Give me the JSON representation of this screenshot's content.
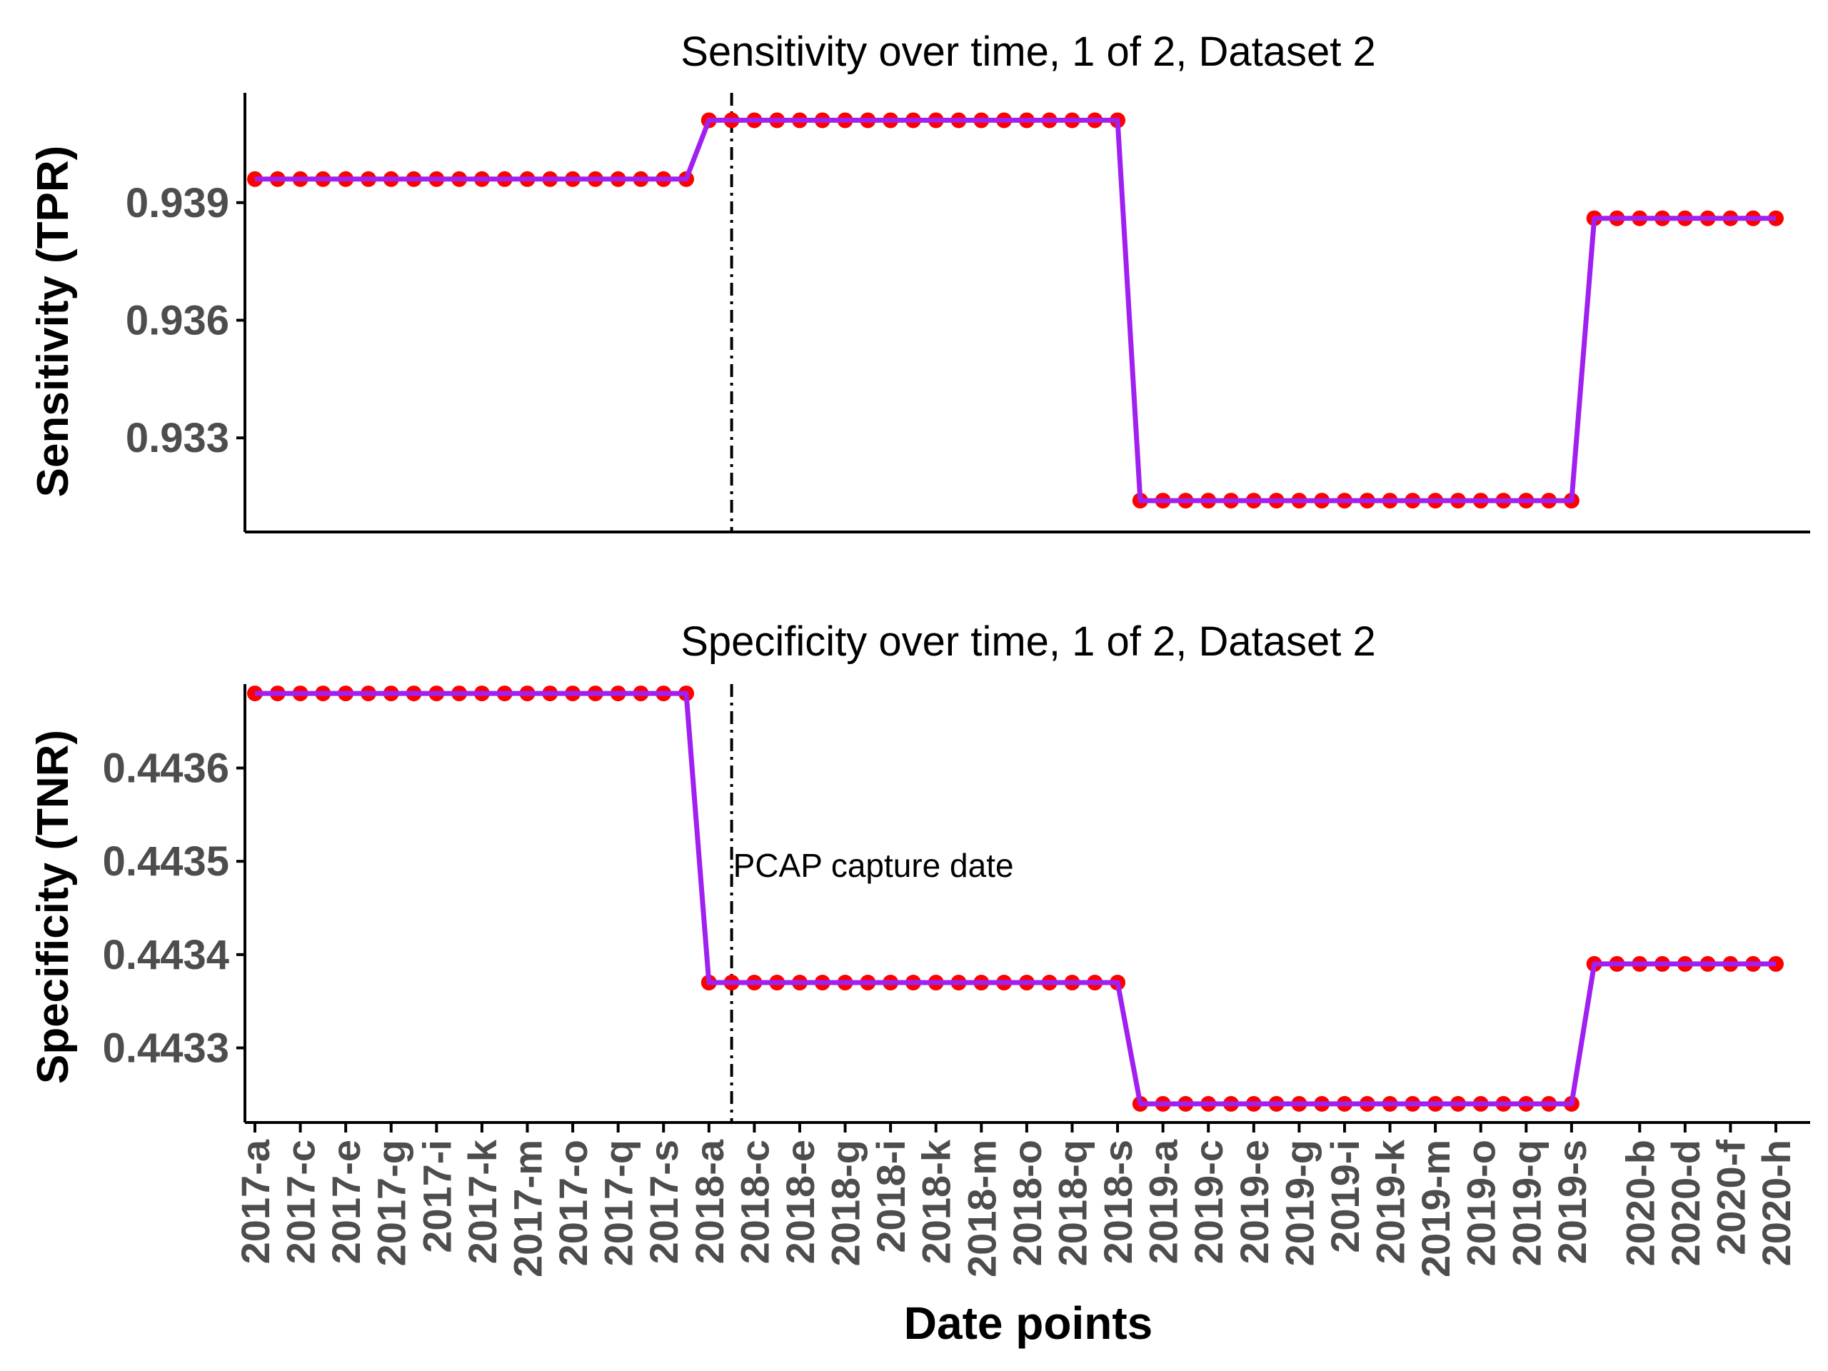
{
  "chart_data": [
    {
      "type": "line",
      "title": "Sensitivity over time, 1 of 2, Dataset 2",
      "ylabel": "Sensitivity (TPR)",
      "xlabel": "",
      "y_ticks": [
        0.933,
        0.936,
        0.939
      ],
      "y_tick_labels": [
        "0.933",
        "0.936",
        "0.939"
      ],
      "ylim": [
        0.9306,
        0.9418
      ],
      "show_x_tick_labels": false,
      "vline_x": "2018-b",
      "annotation": "",
      "series": [
        {
          "values": [
            0.9396,
            0.9396,
            0.9396,
            0.9396,
            0.9396,
            0.9396,
            0.9396,
            0.9396,
            0.9396,
            0.9396,
            0.9396,
            0.9396,
            0.9396,
            0.9396,
            0.9396,
            0.9396,
            0.9396,
            0.9396,
            0.9396,
            0.9396,
            0.9411,
            0.9411,
            0.9411,
            0.9411,
            0.9411,
            0.9411,
            0.9411,
            0.9411,
            0.9411,
            0.9411,
            0.9411,
            0.9411,
            0.9411,
            0.9411,
            0.9411,
            0.9411,
            0.9411,
            0.9411,
            0.9411,
            0.9314,
            0.9314,
            0.9314,
            0.9314,
            0.9314,
            0.9314,
            0.9314,
            0.9314,
            0.9314,
            0.9314,
            0.9314,
            0.9314,
            0.9314,
            0.9314,
            0.9314,
            0.9314,
            0.9314,
            0.9314,
            0.9314,
            0.9314,
            0.9386,
            0.9386,
            0.9386,
            0.9386,
            0.9386,
            0.9386,
            0.9386,
            0.9386,
            0.9386
          ]
        }
      ]
    },
    {
      "type": "line",
      "title": "Specificity over time, 1 of 2, Dataset 2",
      "ylabel": "Specificity (TNR)",
      "xlabel": "Date points",
      "y_ticks": [
        0.4433,
        0.4434,
        0.4435,
        0.4436
      ],
      "y_tick_labels": [
        "0.4433",
        "0.4434",
        "0.4435",
        "0.4436"
      ],
      "ylim": [
        0.44322,
        0.44369
      ],
      "show_x_tick_labels": true,
      "vline_x": "2018-b",
      "annotation": "PCAP capture date",
      "series": [
        {
          "values": [
            0.44368,
            0.44368,
            0.44368,
            0.44368,
            0.44368,
            0.44368,
            0.44368,
            0.44368,
            0.44368,
            0.44368,
            0.44368,
            0.44368,
            0.44368,
            0.44368,
            0.44368,
            0.44368,
            0.44368,
            0.44368,
            0.44368,
            0.44368,
            0.44337,
            0.44337,
            0.44337,
            0.44337,
            0.44337,
            0.44337,
            0.44337,
            0.44337,
            0.44337,
            0.44337,
            0.44337,
            0.44337,
            0.44337,
            0.44337,
            0.44337,
            0.44337,
            0.44337,
            0.44337,
            0.44337,
            0.44324,
            0.44324,
            0.44324,
            0.44324,
            0.44324,
            0.44324,
            0.44324,
            0.44324,
            0.44324,
            0.44324,
            0.44324,
            0.44324,
            0.44324,
            0.44324,
            0.44324,
            0.44324,
            0.44324,
            0.44324,
            0.44324,
            0.44324,
            0.44339,
            0.44339,
            0.44339,
            0.44339,
            0.44339,
            0.44339,
            0.44339,
            0.44339,
            0.44339
          ]
        }
      ]
    }
  ],
  "x": [
    "2017-a",
    "2017-b",
    "2017-c",
    "2017-d",
    "2017-e",
    "2017-f",
    "2017-g",
    "2017-h",
    "2017-i",
    "2017-j",
    "2017-k",
    "2017-l",
    "2017-m",
    "2017-n",
    "2017-o",
    "2017-p",
    "2017-q",
    "2017-r",
    "2017-s",
    "2017-t",
    "2018-a",
    "2018-b",
    "2018-c",
    "2018-d",
    "2018-e",
    "2018-f",
    "2018-g",
    "2018-h",
    "2018-i",
    "2018-j",
    "2018-k",
    "2018-l",
    "2018-m",
    "2018-n",
    "2018-o",
    "2018-p",
    "2018-q",
    "2018-r",
    "2018-s",
    "2018-t",
    "2019-a",
    "2019-b",
    "2019-c",
    "2019-d",
    "2019-e",
    "2019-f",
    "2019-g",
    "2019-h",
    "2019-i",
    "2019-j",
    "2019-k",
    "2019-l",
    "2019-m",
    "2019-n",
    "2019-o",
    "2019-p",
    "2019-q",
    "2019-r",
    "2019-s",
    "2019-t",
    "2020-a",
    "2020-b",
    "2020-c",
    "2020-d",
    "2020-e",
    "2020-f",
    "2020-g",
    "2020-h"
  ],
  "x_tick_labels": [
    "2017-a",
    "2017-c",
    "2017-e",
    "2017-g",
    "2017-i",
    "2017-k",
    "2017-m",
    "2017-o",
    "2017-q",
    "2017-s",
    "2018-a",
    "2018-c",
    "2018-e",
    "2018-g",
    "2018-i",
    "2018-k",
    "2018-m",
    "2018-o",
    "2018-q",
    "2018-s",
    "2019-a",
    "2019-c",
    "2019-e",
    "2019-g",
    "2019-i",
    "2019-k",
    "2019-m",
    "2019-o",
    "2019-q",
    "2019-s",
    "2020-b",
    "2020-d",
    "2020-f",
    "2020-h"
  ],
  "colors": {
    "line": "#a020f0",
    "point": "#ff0000",
    "axis": "#000000",
    "tick_text": "#4d4d4d"
  }
}
